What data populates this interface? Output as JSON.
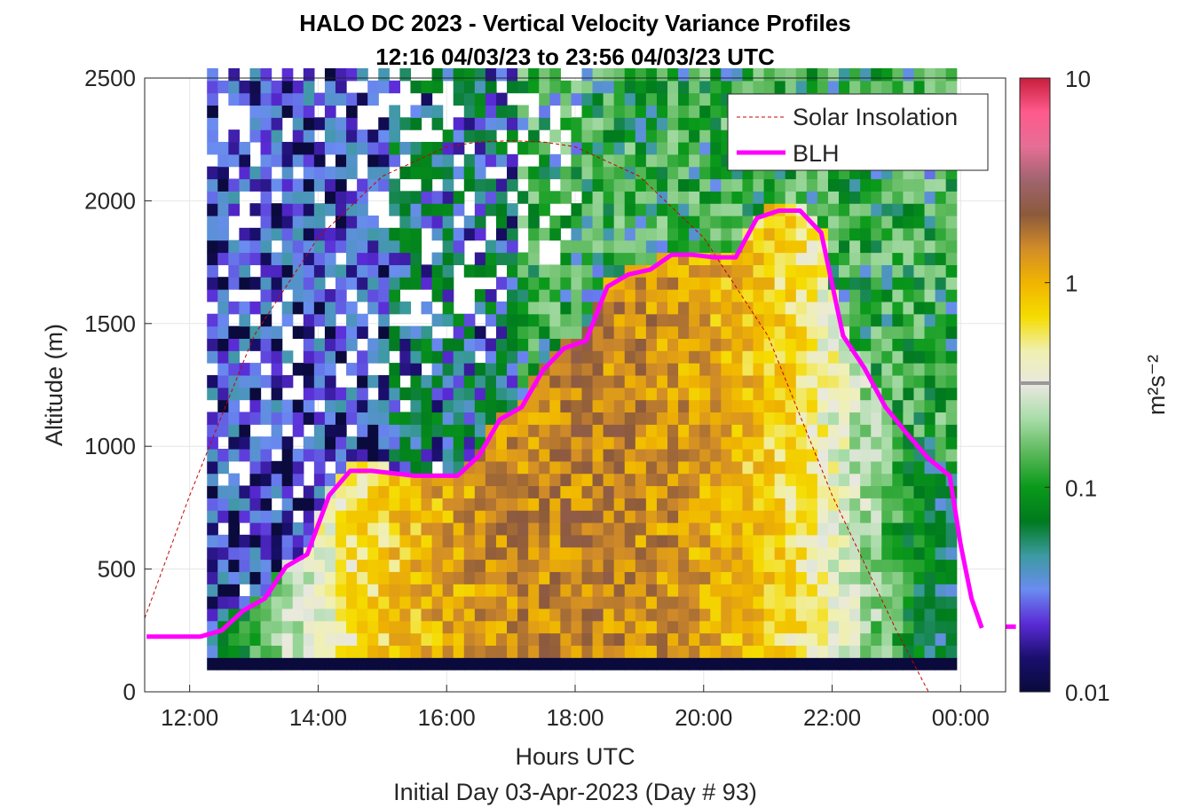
{
  "chart_data": {
    "type": "heatmap",
    "title": "HALO DC 2023 - Vertical Velocity Variance Profiles",
    "subtitle": "12:16 04/03/23 to 23:56 04/03/23  UTC",
    "xlabel": "Hours UTC",
    "x_sublabel": "Initial Day 03-Apr-2023 (Day # 93)",
    "ylabel": "Altitude (m)",
    "xlim_hours": [
      11.3,
      24.7
    ],
    "ylim": [
      0,
      2500
    ],
    "x_ticks": [
      {
        "hour": 12,
        "label": "12:00"
      },
      {
        "hour": 14,
        "label": "14:00"
      },
      {
        "hour": 16,
        "label": "16:00"
      },
      {
        "hour": 18,
        "label": "18:00"
      },
      {
        "hour": 20,
        "label": "20:00"
      },
      {
        "hour": 22,
        "label": "22:00"
      },
      {
        "hour": 24,
        "label": "00:00"
      }
    ],
    "y_ticks": [
      0,
      500,
      1000,
      1500,
      2000,
      2500
    ],
    "grid": true,
    "colorbar": {
      "label": "m²s⁻²",
      "scale": "log",
      "range": [
        0.01,
        10
      ],
      "ticks": [
        {
          "value": 0.01,
          "label": "0.01"
        },
        {
          "value": 0.1,
          "label": "0.1"
        },
        {
          "value": 1,
          "label": "1"
        },
        {
          "value": 10,
          "label": "10"
        }
      ],
      "colors": [
        "#0a0a3c",
        "#1a0f6e",
        "#5a2bd6",
        "#6a8cf0",
        "#3c9aa0",
        "#007a1e",
        "#0a9a1a",
        "#5ab85a",
        "#a8dca8",
        "#e8e8e0",
        "#f0f0b0",
        "#f5dc00",
        "#f0b400",
        "#d28c28",
        "#8c5a3c",
        "#a0646e",
        "#e66e96",
        "#ff5a8c",
        "#c81e3c"
      ]
    },
    "legend": {
      "placement": "top-right",
      "entries": [
        {
          "name": "Solar Insolation",
          "color": "#cc0000",
          "style": "dashed"
        },
        {
          "name": "BLH",
          "color": "#ff00ff",
          "style": "solid"
        }
      ]
    },
    "blh": {
      "name": "BLH",
      "x": [
        11.33,
        11.5,
        11.67,
        11.83,
        12.0,
        12.17,
        12.5,
        12.83,
        13.17,
        13.5,
        13.83,
        14.17,
        14.5,
        14.83,
        15.17,
        15.5,
        15.83,
        16.17,
        16.5,
        16.83,
        17.17,
        17.5,
        17.83,
        18.17,
        18.5,
        18.83,
        19.17,
        19.5,
        19.83,
        20.17,
        20.5,
        20.83,
        21.17,
        21.5,
        21.83,
        22.17,
        22.5,
        22.83,
        23.17,
        23.5,
        23.83,
        24.0,
        24.17,
        24.33
      ],
      "y": [
        225,
        225,
        225,
        225,
        225,
        225,
        250,
        330,
        380,
        510,
        560,
        800,
        900,
        900,
        890,
        880,
        880,
        880,
        960,
        1110,
        1160,
        1310,
        1400,
        1430,
        1650,
        1700,
        1720,
        1780,
        1780,
        1770,
        1770,
        1930,
        1960,
        1960,
        1870,
        1450,
        1320,
        1160,
        1050,
        950,
        880,
        600,
        380,
        260
      ]
    },
    "blh_extra": {
      "x": [
        24.7,
        24.86
      ],
      "y": [
        265,
        265
      ]
    },
    "solar_insolation": {
      "name": "Solar Insolation",
      "note": "relative curve, peak near 17:10 UTC",
      "x": [
        11.3,
        12.0,
        13.0,
        14.0,
        15.0,
        16.0,
        16.5,
        17.0,
        17.5,
        18.0,
        19.0,
        20.0,
        21.0,
        22.0,
        23.0,
        23.5,
        24.7
      ],
      "y": [
        300,
        800,
        1450,
        1850,
        2100,
        2220,
        2240,
        2245,
        2240,
        2220,
        2100,
        1850,
        1450,
        800,
        250,
        0,
        0
      ]
    },
    "variance_heatmap": {
      "description": "Vertical velocity variance cells (m2 s-2) binned by time and altitude; approx. 0.01-0.05 above boundary layer at morning, 0.5-2 within convective boundary layer afternoon",
      "time_range_hours": [
        12.27,
        23.93
      ],
      "altitude_range_m": [
        90,
        2500
      ],
      "peak_value": 2.0,
      "peak_time_hour": 19.75,
      "peak_altitude_m": 700
    }
  }
}
